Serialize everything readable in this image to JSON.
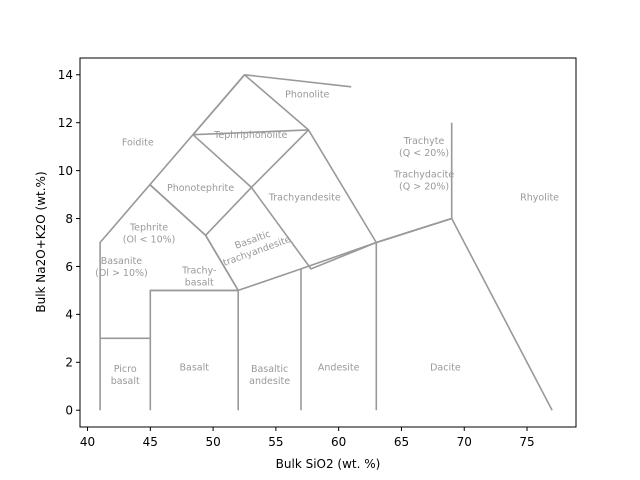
{
  "chart_data": {
    "type": "line",
    "title": "",
    "xlabel": "Bulk SiO2 (wt. %)",
    "ylabel": "Bulk Na2O+K2O (wt.%)",
    "xlim": [
      39.4,
      78.9
    ],
    "ylim": [
      -0.7,
      14.7
    ],
    "xticks": [
      40,
      45,
      50,
      55,
      60,
      65,
      70,
      75
    ],
    "yticks": [
      0,
      2,
      4,
      6,
      8,
      10,
      12,
      14
    ],
    "grid": false,
    "line_color": "#999999",
    "label_color": "#999999",
    "boundaries": [
      {
        "x": [
          41,
          41,
          52.5,
          61
        ],
        "y": [
          0,
          7,
          14,
          13.5
        ]
      },
      {
        "x": [
          45,
          45,
          52,
          52
        ],
        "y": [
          0,
          5,
          5,
          0
        ]
      },
      {
        "x": [
          41,
          45
        ],
        "y": [
          3,
          3
        ]
      },
      {
        "x": [
          45,
          49.4,
          53.05,
          57.6,
          63,
          69,
          77
        ],
        "y": [
          9.4,
          7.3,
          9.3,
          11.7,
          7.0,
          8.0,
          0
        ]
      },
      {
        "x": [
          48.4,
          53.05,
          57.8,
          63,
          69,
          69
        ],
        "y": [
          11.5,
          9.3,
          5.9,
          7.0,
          8.0,
          12
        ]
      },
      {
        "x": [
          45,
          52,
          57,
          63,
          69
        ],
        "y": [
          5,
          5,
          5.9,
          7.0,
          8.0
        ]
      },
      {
        "x": [
          52.5,
          57.6
        ],
        "y": [
          14,
          11.7
        ]
      },
      {
        "x": [
          48.4,
          57.6
        ],
        "y": [
          11.5,
          11.7
        ]
      },
      {
        "x": [
          52,
          49.4,
          45
        ],
        "y": [
          5,
          7.3,
          9.4
        ]
      },
      {
        "x": [
          57,
          57
        ],
        "y": [
          5.9,
          0
        ]
      },
      {
        "x": [
          63,
          63
        ],
        "y": [
          7.0,
          0
        ]
      },
      {
        "x": [
          52,
          49.4
        ],
        "y": [
          5,
          7.3
        ]
      },
      {
        "x": [
          52.5,
          48.4
        ],
        "y": [
          14,
          11.5
        ]
      }
    ],
    "annotations": [
      {
        "lines": [
          "Foidite"
        ],
        "x": 44,
        "y": 11.2,
        "rotate": 0
      },
      {
        "lines": [
          "Phonolite"
        ],
        "x": 57.5,
        "y": 13.2,
        "rotate": 0
      },
      {
        "lines": [
          "Tephriphonolite"
        ],
        "x": 53,
        "y": 11.5,
        "rotate": 0
      },
      {
        "lines": [
          "Trachyte",
          "(Q < 20%)"
        ],
        "x": 66.8,
        "y": 11.0,
        "rotate": 0
      },
      {
        "lines": [
          "Trachydacite",
          "(Q > 20%)"
        ],
        "x": 66.8,
        "y": 9.6,
        "rotate": 0
      },
      {
        "lines": [
          "Phonotephrite"
        ],
        "x": 49,
        "y": 9.3,
        "rotate": 0
      },
      {
        "lines": [
          "Trachyandesite"
        ],
        "x": 57.3,
        "y": 8.9,
        "rotate": 0
      },
      {
        "lines": [
          "Rhyolite"
        ],
        "x": 76,
        "y": 8.9,
        "rotate": 0
      },
      {
        "lines": [
          "Tephrite",
          "(Ol < 10%)"
        ],
        "x": 44.9,
        "y": 7.4,
        "rotate": 0
      },
      {
        "lines": [
          "Basaltic",
          "trachyandesite"
        ],
        "x": 53.3,
        "y": 6.9,
        "rotate": -20
      },
      {
        "lines": [
          "Basanite",
          "(Ol > 10%)"
        ],
        "x": 42.7,
        "y": 6.0,
        "rotate": 0
      },
      {
        "lines": [
          "Trachy-",
          "basalt"
        ],
        "x": 48.9,
        "y": 5.6,
        "rotate": 0
      },
      {
        "lines": [
          "Picro",
          "basalt"
        ],
        "x": 43,
        "y": 1.5,
        "rotate": 0
      },
      {
        "lines": [
          "Basalt"
        ],
        "x": 48.5,
        "y": 1.8,
        "rotate": 0
      },
      {
        "lines": [
          "Basaltic",
          "andesite"
        ],
        "x": 54.5,
        "y": 1.5,
        "rotate": 0
      },
      {
        "lines": [
          "Andesite"
        ],
        "x": 60,
        "y": 1.8,
        "rotate": 0
      },
      {
        "lines": [
          "Dacite"
        ],
        "x": 68.5,
        "y": 1.8,
        "rotate": 0
      }
    ]
  }
}
